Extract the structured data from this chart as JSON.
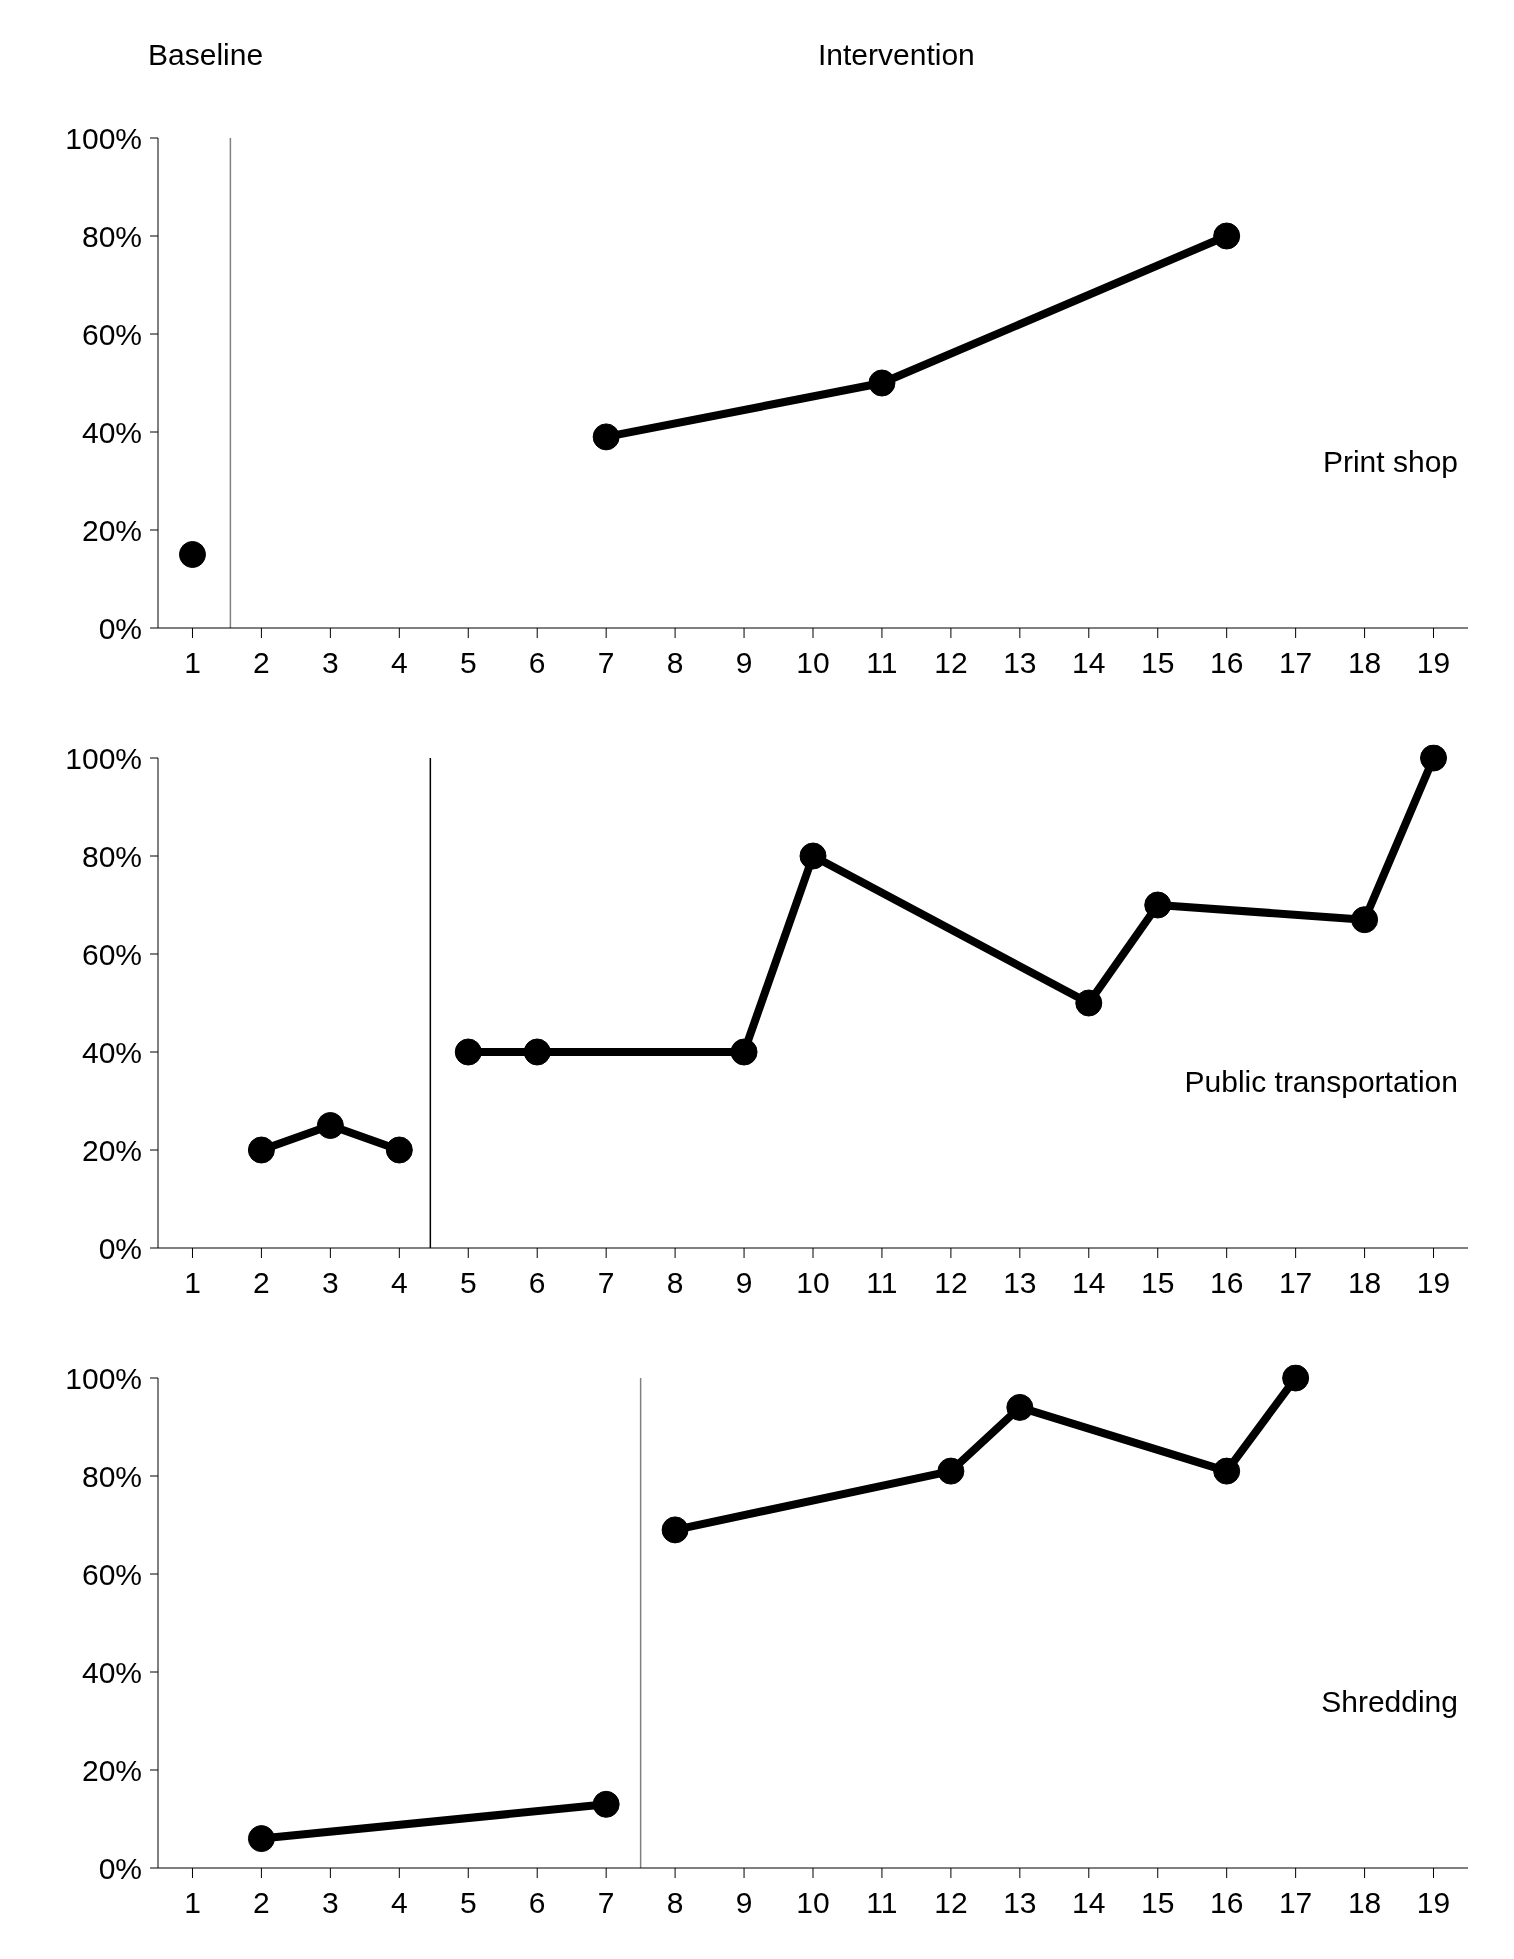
{
  "chart_data": [
    {
      "type": "line",
      "title": "Print shop",
      "annotations": [
        "Baseline",
        "Intervention"
      ],
      "xlim": [
        0.5,
        19.5
      ],
      "xticks": [
        1,
        2,
        3,
        4,
        5,
        6,
        7,
        8,
        9,
        10,
        11,
        12,
        13,
        14,
        15,
        16,
        17,
        18,
        19
      ],
      "ylim": [
        0,
        100
      ],
      "yticks": [
        {
          "value": 0,
          "label": "0%"
        },
        {
          "value": 20,
          "label": "20%"
        },
        {
          "value": 40,
          "label": "40%"
        },
        {
          "value": 60,
          "label": "60%"
        },
        {
          "value": 80,
          "label": "80%"
        },
        {
          "value": 100,
          "label": "100%"
        }
      ],
      "grid": false,
      "legend": false,
      "marker": "circle",
      "line_style": "solid",
      "ref_lines": [
        {
          "axis": "x",
          "value": 1.55,
          "color": "#808080"
        }
      ],
      "series": [
        {
          "color": "#000000",
          "x": [
            1
          ],
          "values": [
            15
          ]
        },
        {
          "color": "#000000",
          "x": [
            7,
            11,
            16
          ],
          "values": [
            39,
            50,
            80
          ]
        }
      ]
    },
    {
      "type": "line",
      "title": "Public transportation",
      "xlim": [
        0.5,
        19.5
      ],
      "xticks": [
        1,
        2,
        3,
        4,
        5,
        6,
        7,
        8,
        9,
        10,
        11,
        12,
        13,
        14,
        15,
        16,
        17,
        18,
        19
      ],
      "ylim": [
        0,
        100
      ],
      "yticks": [
        {
          "value": 0,
          "label": "0%"
        },
        {
          "value": 20,
          "label": "20%"
        },
        {
          "value": 40,
          "label": "40%"
        },
        {
          "value": 60,
          "label": "60%"
        },
        {
          "value": 80,
          "label": "80%"
        },
        {
          "value": 100,
          "label": "100%"
        }
      ],
      "grid": false,
      "legend": false,
      "marker": "circle",
      "line_style": "solid",
      "ref_lines": [
        {
          "axis": "x",
          "value": 4.45,
          "color": "#000000"
        }
      ],
      "series": [
        {
          "color": "#000000",
          "x": [
            2,
            3,
            4
          ],
          "values": [
            20,
            25,
            20
          ]
        },
        {
          "color": "#000000",
          "x": [
            5,
            6,
            9,
            10,
            14,
            15,
            18,
            19
          ],
          "values": [
            40,
            40,
            40,
            80,
            50,
            70,
            67,
            100
          ]
        }
      ]
    },
    {
      "type": "line",
      "title": "Shredding",
      "xlim": [
        0.5,
        19.5
      ],
      "xticks": [
        1,
        2,
        3,
        4,
        5,
        6,
        7,
        8,
        9,
        10,
        11,
        12,
        13,
        14,
        15,
        16,
        17,
        18,
        19
      ],
      "ylim": [
        0,
        100
      ],
      "yticks": [
        {
          "value": 0,
          "label": "0%"
        },
        {
          "value": 20,
          "label": "20%"
        },
        {
          "value": 40,
          "label": "40%"
        },
        {
          "value": 60,
          "label": "60%"
        },
        {
          "value": 80,
          "label": "80%"
        },
        {
          "value": 100,
          "label": "100%"
        }
      ],
      "grid": false,
      "legend": false,
      "marker": "circle",
      "line_style": "solid",
      "ref_lines": [
        {
          "axis": "x",
          "value": 7.5,
          "color": "#808080"
        }
      ],
      "series": [
        {
          "color": "#000000",
          "x": [
            2,
            7
          ],
          "values": [
            6,
            13
          ]
        },
        {
          "color": "#000000",
          "x": [
            8,
            12,
            13,
            16,
            17
          ],
          "values": [
            69,
            81,
            94,
            81,
            100
          ]
        }
      ]
    }
  ]
}
